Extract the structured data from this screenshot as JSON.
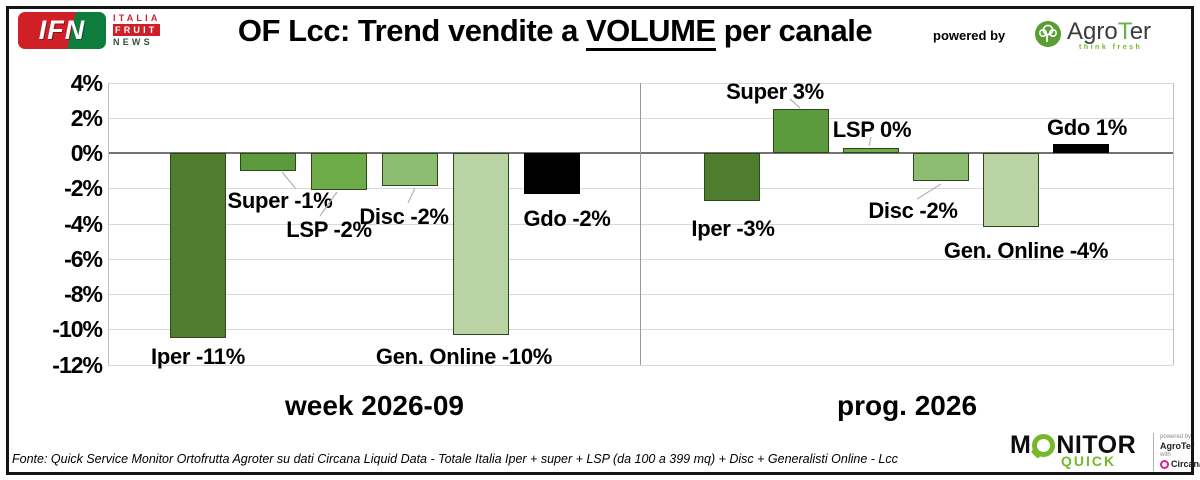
{
  "brand": {
    "ifn_acronym": "IFN",
    "ifn_lines": [
      "ITALIA",
      "FRUIT",
      "NEWS"
    ]
  },
  "header": {
    "title_pre": "OF Lcc: Trend vendite a ",
    "title_em": "VOLUME",
    "title_post": " per canale",
    "powered_by": "powered by",
    "agroter_parts": [
      "Agro",
      "T",
      "er"
    ],
    "agroter_tagline": "think fresh"
  },
  "chart_data": {
    "type": "bar",
    "title": "OF Lcc: Trend vendite a VOLUME per canale",
    "y_axis": {
      "tick_labels": [
        "4%",
        "2%",
        "0%",
        "-2%",
        "-4%",
        "-6%",
        "-8%",
        "-10%",
        "-12%"
      ],
      "min": -12,
      "max": 4,
      "grid": true
    },
    "groups": [
      {
        "label": "week 2026-09",
        "bars": [
          {
            "name": "Iper",
            "value": -11,
            "text": "Iper -11%",
            "plot": -10.5,
            "color": "#4f7d30"
          },
          {
            "name": "Super",
            "value": -1,
            "text": "Super -1%",
            "plot": -1.0,
            "color": "#5c9a3e"
          },
          {
            "name": "LSP",
            "value": -2,
            "text": "LSP -2%",
            "plot": -2.1,
            "color": "#6dac49"
          },
          {
            "name": "Disc",
            "value": -2,
            "text": "Disc -2%",
            "plot": -1.9,
            "color": "#8cbd71"
          },
          {
            "name": "Gen. Online",
            "value": -10,
            "text": "Gen. Online -10%",
            "plot": -10.3,
            "color": "#b9d3a4"
          },
          {
            "name": "Gdo",
            "value": -2,
            "text": "Gdo -2%",
            "plot": -2.3,
            "color": "#000000"
          }
        ]
      },
      {
        "label": "prog. 2026",
        "bars": [
          {
            "name": "Iper",
            "value": -3,
            "text": "Iper -3%",
            "plot": -2.7,
            "color": "#4f7d30"
          },
          {
            "name": "Super",
            "value": 3,
            "text": "Super 3%",
            "plot": 2.5,
            "color": "#5c9a3e"
          },
          {
            "name": "LSP",
            "value": 0,
            "text": "LSP 0%",
            "plot": 0.3,
            "color": "#6dac49"
          },
          {
            "name": "Disc",
            "value": -2,
            "text": "Disc -2%",
            "plot": -1.6,
            "color": "#8cbd71"
          },
          {
            "name": "Gen. Online",
            "value": -4,
            "text": "Gen. Online -4%",
            "plot": -4.2,
            "color": "#b9d3a4"
          },
          {
            "name": "Gdo",
            "value": 1,
            "text": "Gdo 1%",
            "plot": 0.5,
            "color": "#000000"
          }
        ]
      }
    ]
  },
  "footer": {
    "source": "Fonte: Quick Service Monitor Ortofrutta Agroter su dati Circana Liquid Data - Totale Italia Iper + super + LSP (da 100 a 399 mq) + Disc + Generalisti Online - Lcc"
  },
  "monitor_logo": {
    "monitor_m": "M",
    "monitor_rest": "NITOR",
    "quick": "QUICK",
    "powered_by": "powered by",
    "agroter": "AgroTer",
    "with_word": "with",
    "circana": "Circana"
  },
  "colors": {
    "accent_green": "#76b82a",
    "brand_red": "#cf2027",
    "brand_dark_green": "#0e7c3a",
    "circana_magenta": "#e0218a",
    "gridline": "#d9d9d9",
    "zero_line": "#737373"
  }
}
